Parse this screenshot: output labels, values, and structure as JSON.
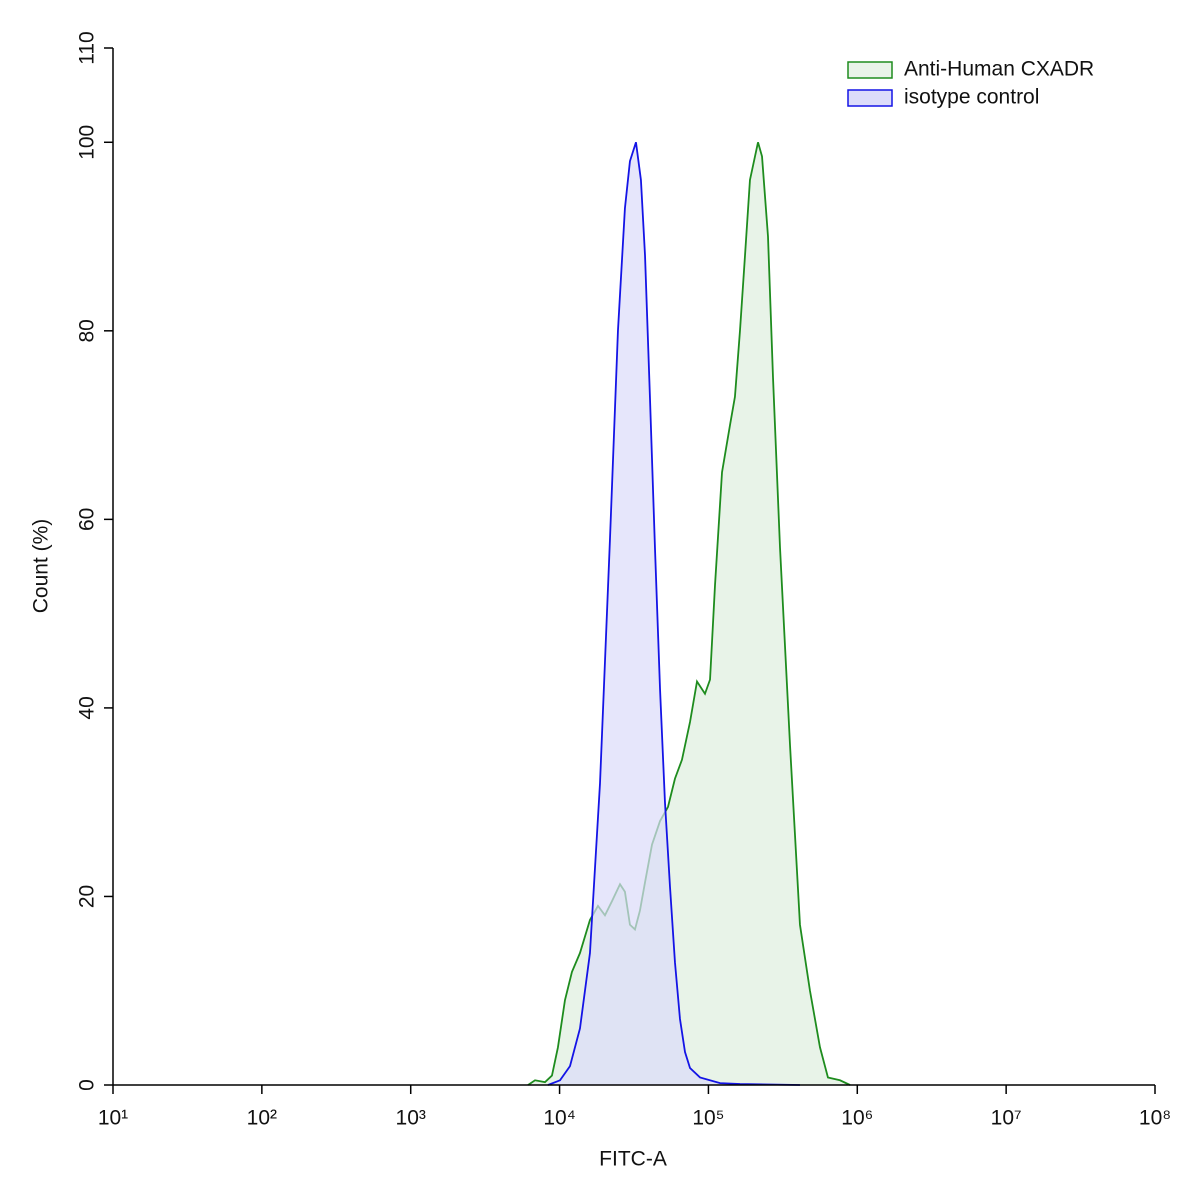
{
  "chart_data": {
    "type": "histogram-overlay",
    "xlabel": "FITC-A",
    "ylabel": "Count  (%)",
    "xscale": "log",
    "xlim": [
      10,
      100000000
    ],
    "xticks": [
      {
        "value": 10,
        "label": "10¹"
      },
      {
        "value": 100,
        "label": "10²"
      },
      {
        "value": 1000,
        "label": "10³"
      },
      {
        "value": 10000,
        "label": "10⁴"
      },
      {
        "value": 100000,
        "label": "10⁵"
      },
      {
        "value": 1000000,
        "label": "10⁶"
      },
      {
        "value": 10000000,
        "label": "10⁷"
      },
      {
        "value": 100000000,
        "label": "10⁸"
      }
    ],
    "ylim": [
      0,
      110
    ],
    "yticks": [
      0,
      20,
      40,
      60,
      80,
      100,
      110
    ],
    "legend": "upper right",
    "series": [
      {
        "name": "Anti-Human CXADR",
        "color": "#1e8c1e",
        "fill": "#e8f3e8",
        "x": [
          6140,
          6840,
          7980,
          8890,
          9750,
          10870,
          12110,
          13710,
          16000,
          18110,
          20180,
          22490,
          25470,
          27480,
          29700,
          32100,
          34670,
          37500,
          41780,
          47300,
          53500,
          59600,
          66400,
          75200,
          83800,
          94800,
          102500,
          110700,
          123400,
          139600,
          150700,
          162900,
          176100,
          190100,
          215300,
          229100,
          251300,
          271600,
          302600,
          353400,
          412000,
          481000,
          561500,
          635300,
          765200,
          893700
        ],
        "values": [
          0,
          0.5,
          0.3,
          1,
          4,
          9,
          12,
          14,
          17.5,
          19,
          18,
          19.5,
          21.3,
          20.5,
          17,
          16.5,
          18.5,
          21.5,
          25.5,
          28,
          29.5,
          32.5,
          34.5,
          38.5,
          42.8,
          41.5,
          43,
          53,
          65,
          70,
          73,
          80,
          88,
          96,
          100,
          98.5,
          90,
          75,
          57,
          36,
          17,
          10,
          4,
          0.8,
          0.5,
          0
        ]
      },
      {
        "name": "isotype control",
        "color": "#1414e6",
        "fill": "#dcdcfa",
        "x": [
          8356,
          10070,
          11750,
          13710,
          16000,
          18690,
          21820,
          24670,
          27480,
          29700,
          32600,
          35200,
          37500,
          40460,
          43730,
          47300,
          51050,
          55200,
          59600,
          64400,
          69600,
          75200,
          87800,
          119700,
          162900,
          412000
        ],
        "values": [
          0,
          0.5,
          2,
          6,
          14,
          32,
          58,
          80,
          93,
          98,
          100,
          96,
          88,
          73,
          57,
          42,
          30,
          21,
          13,
          7,
          3.5,
          1.8,
          0.8,
          0.2,
          0.1,
          0
        ]
      }
    ]
  }
}
